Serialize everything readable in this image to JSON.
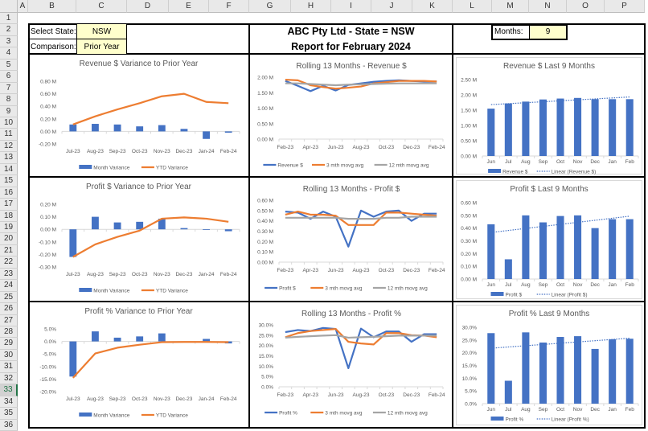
{
  "columns": [
    "A",
    "B",
    "C",
    "D",
    "E",
    "F",
    "G",
    "H",
    "I",
    "J",
    "K",
    "L",
    "M",
    "N",
    "O",
    "P"
  ],
  "rows": [
    "1",
    "2",
    "3",
    "4",
    "5",
    "6",
    "7",
    "8",
    "9",
    "10",
    "11",
    "12",
    "13",
    "14",
    "15",
    "16",
    "17",
    "18",
    "19",
    "20",
    "21",
    "22",
    "23",
    "24",
    "25",
    "26",
    "27",
    "28",
    "29",
    "30",
    "31",
    "32",
    "33",
    "34",
    "35",
    "36"
  ],
  "selected_row": "33",
  "controls": {
    "state_label": "Select State:",
    "state_value": "NSW",
    "comparison_label": "Comparison:",
    "comparison_value": "Prior Year",
    "months_label": "Months:",
    "months_value": "9"
  },
  "header": {
    "line1": "ABC Pty Ltd - State = NSW",
    "line2": "Report for February 2024"
  },
  "colors": {
    "blue": "#4472c4",
    "orange": "#ed7d31",
    "gray": "#a5a5a5"
  },
  "chart_data": [
    {
      "id": "rev-var",
      "type": "bar+line",
      "title": "Revenue $ Variance to Prior Year",
      "categories": [
        "Jul-23",
        "Aug-23",
        "Sep-23",
        "Oct-23",
        "Nov-23",
        "Dec-23",
        "Jan-24",
        "Feb-24"
      ],
      "ylim": [
        -0.2,
        0.8
      ],
      "yticks": [
        "-0.20 M",
        "0.00 M",
        "0.20 M",
        "0.40 M",
        "0.60 M",
        "0.80 M"
      ],
      "series": [
        {
          "name": "Month Variance",
          "kind": "bar",
          "color": "#4472c4",
          "values": [
            0.11,
            0.12,
            0.11,
            0.08,
            0.1,
            0.04,
            -0.12,
            -0.02
          ]
        },
        {
          "name": "YTD Variance",
          "kind": "line",
          "color": "#ed7d31",
          "values": [
            0.11,
            0.24,
            0.35,
            0.45,
            0.56,
            0.6,
            0.47,
            0.45
          ]
        }
      ]
    },
    {
      "id": "rev-roll",
      "type": "line",
      "title": "Rolling 13 Months - Revenue $",
      "categories": [
        "Feb-23",
        "Mar-23",
        "Apr-23",
        "May-23",
        "Jun-23",
        "Jul-23",
        "Aug-23",
        "Sep-23",
        "Oct-23",
        "Nov-23",
        "Dec-23",
        "Jan-24",
        "Feb-24"
      ],
      "ylim": [
        0,
        2
      ],
      "yticks": [
        "0.00 M",
        "0.50 M",
        "1.00 M",
        "1.50 M",
        "2.00 M"
      ],
      "series": [
        {
          "name": "Revenue $",
          "kind": "line",
          "color": "#4472c4",
          "values": [
            1.88,
            1.72,
            1.55,
            1.72,
            1.57,
            1.75,
            1.8,
            1.85,
            1.88,
            1.9,
            1.88,
            1.86,
            1.86
          ]
        },
        {
          "name": "3 mth movg avg",
          "kind": "line",
          "color": "#ed7d31",
          "values": [
            1.92,
            1.9,
            1.74,
            1.68,
            1.63,
            1.66,
            1.7,
            1.8,
            1.84,
            1.88,
            1.88,
            1.88,
            1.86
          ]
        },
        {
          "name": "12 mth movg avg",
          "kind": "line",
          "color": "#a5a5a5",
          "values": [
            1.8,
            1.8,
            1.78,
            1.76,
            1.74,
            1.76,
            1.77,
            1.78,
            1.79,
            1.8,
            1.8,
            1.8,
            1.8
          ]
        }
      ]
    },
    {
      "id": "rev-last9",
      "type": "bar+trend",
      "title": "Revenue $ Last 9 Months",
      "categories": [
        "Jun",
        "Jul",
        "Aug",
        "Sep",
        "Oct",
        "Nov",
        "Dec",
        "Jan",
        "Feb"
      ],
      "ylim": [
        0,
        2.5
      ],
      "yticks": [
        "0.00 M",
        "0.50 M",
        "1.00 M",
        "1.50 M",
        "2.00 M",
        "2.50 M"
      ],
      "series": [
        {
          "name": "Revenue $",
          "kind": "bar",
          "color": "#4472c4",
          "values": [
            1.55,
            1.72,
            1.78,
            1.85,
            1.88,
            1.9,
            1.86,
            1.86,
            1.86
          ]
        },
        {
          "name": "Linear (Revenue $)",
          "kind": "trend",
          "color": "#4472c4"
        }
      ]
    },
    {
      "id": "profit-var",
      "type": "bar+line",
      "title": "Profit $ Variance to Prior Year",
      "categories": [
        "Jul-23",
        "Aug-23",
        "Sep-23",
        "Oct-23",
        "Nov-23",
        "Dec-23",
        "Jan-24",
        "Feb-24"
      ],
      "ylim": [
        -0.3,
        0.2
      ],
      "yticks": [
        "-0.30 M",
        "-0.20 M",
        "-0.10 M",
        "0.00 M",
        "0.10 M",
        "0.20 M"
      ],
      "series": [
        {
          "name": "Month Variance",
          "kind": "bar",
          "color": "#4472c4",
          "values": [
            -0.22,
            0.1,
            0.055,
            0.06,
            0.085,
            0.01,
            -0.005,
            -0.015
          ]
        },
        {
          "name": "YTD Variance",
          "kind": "line",
          "color": "#ed7d31",
          "values": [
            -0.22,
            -0.12,
            -0.06,
            -0.01,
            0.085,
            0.095,
            0.085,
            0.06
          ]
        }
      ]
    },
    {
      "id": "profit-roll",
      "type": "line",
      "title": "Rolling 13 Months - Profit $",
      "categories": [
        "Feb-23",
        "Mar-23",
        "Apr-23",
        "May-23",
        "Jun-23",
        "Jul-23",
        "Aug-23",
        "Sep-23",
        "Oct-23",
        "Nov-23",
        "Dec-23",
        "Jan-24",
        "Feb-24"
      ],
      "ylim": [
        0,
        0.6
      ],
      "yticks": [
        "0.00 M",
        "0.10 M",
        "0.20 M",
        "0.30 M",
        "0.40 M",
        "0.50 M",
        "0.60 M"
      ],
      "series": [
        {
          "name": "Profit $",
          "kind": "line",
          "color": "#4472c4",
          "values": [
            0.49,
            0.48,
            0.42,
            0.49,
            0.44,
            0.15,
            0.5,
            0.44,
            0.49,
            0.5,
            0.4,
            0.47,
            0.47
          ]
        },
        {
          "name": "3 mth movg avg",
          "kind": "line",
          "color": "#ed7d31",
          "values": [
            0.46,
            0.49,
            0.46,
            0.46,
            0.45,
            0.36,
            0.36,
            0.36,
            0.48,
            0.48,
            0.47,
            0.46,
            0.45
          ]
        },
        {
          "name": "12 mth movg avg",
          "kind": "line",
          "color": "#a5a5a5",
          "values": [
            0.43,
            0.43,
            0.43,
            0.43,
            0.43,
            0.42,
            0.42,
            0.42,
            0.43,
            0.43,
            0.44,
            0.44,
            0.44
          ]
        }
      ]
    },
    {
      "id": "profit-last9",
      "type": "bar+trend",
      "title": "Profit $ Last 9 Months",
      "categories": [
        "Jun",
        "Jul",
        "Aug",
        "Sep",
        "Oct",
        "Nov",
        "Dec",
        "Jan",
        "Feb"
      ],
      "ylim": [
        0,
        0.6
      ],
      "yticks": [
        "0.00 M",
        "0.10 M",
        "0.20 M",
        "0.30 M",
        "0.40 M",
        "0.50 M",
        "0.60 M"
      ],
      "series": [
        {
          "name": "Profit $",
          "kind": "bar",
          "color": "#4472c4",
          "values": [
            0.43,
            0.155,
            0.5,
            0.445,
            0.495,
            0.5,
            0.4,
            0.47,
            0.47
          ]
        },
        {
          "name": "Linear (Profit $)",
          "kind": "trend",
          "color": "#4472c4"
        }
      ]
    },
    {
      "id": "pct-var",
      "type": "bar+line",
      "title": "Profit % Variance to Prior Year",
      "categories": [
        "Jul-23",
        "Aug-23",
        "Sep-23",
        "Oct-23",
        "Nov-23",
        "Dec-23",
        "Jan-24",
        "Feb-24"
      ],
      "ylim": [
        -20,
        5
      ],
      "yticks": [
        "-20.0%",
        "-15.0%",
        "-10.0%",
        "-5.0%",
        "0.0%",
        "5.0%"
      ],
      "series": [
        {
          "name": "Month Variance",
          "kind": "bar",
          "color": "#4472c4",
          "values": [
            -14.0,
            4.0,
            1.5,
            2.0,
            3.2,
            0,
            1.0,
            -0.8
          ]
        },
        {
          "name": "YTD Variance",
          "kind": "line",
          "color": "#ed7d31",
          "values": [
            -14.5,
            -4.8,
            -2.5,
            -1.3,
            -0.3,
            -0.2,
            -0.2,
            -0.3
          ]
        }
      ]
    },
    {
      "id": "pct-roll",
      "type": "line",
      "title": "Rolling 13 Months - Profit %",
      "categories": [
        "Feb-23",
        "Mar-23",
        "Apr-23",
        "May-23",
        "Jun-23",
        "Jul-23",
        "Aug-23",
        "Sep-23",
        "Oct-23",
        "Nov-23",
        "Dec-23",
        "Jan-24",
        "Feb-24"
      ],
      "ylim": [
        0,
        30
      ],
      "yticks": [
        "0.0%",
        "5.0%",
        "10.0%",
        "15.0%",
        "20.0%",
        "25.0%",
        "30.0%"
      ],
      "series": [
        {
          "name": "Profit %",
          "kind": "line",
          "color": "#4472c4",
          "values": [
            26.5,
            27.5,
            27.0,
            28.5,
            28.0,
            9.0,
            28.2,
            24.0,
            26.8,
            26.8,
            21.8,
            25.5,
            25.5
          ]
        },
        {
          "name": "3 mth movg avg",
          "kind": "line",
          "color": "#ed7d31",
          "values": [
            24.0,
            26.0,
            27.0,
            27.5,
            28.0,
            21.8,
            21.0,
            20.5,
            26.0,
            26.0,
            25.0,
            24.8,
            24.0
          ]
        },
        {
          "name": "12 mth movg avg",
          "kind": "line",
          "color": "#a5a5a5",
          "values": [
            23.8,
            24.2,
            24.5,
            24.8,
            25.0,
            23.8,
            24.0,
            24.2,
            24.5,
            24.8,
            24.8,
            24.8,
            24.8
          ]
        }
      ]
    },
    {
      "id": "pct-last9",
      "type": "bar+trend",
      "title": "Profit % Last 9 Months",
      "categories": [
        "Jun",
        "Jul",
        "Aug",
        "Sep",
        "Oct",
        "Nov",
        "Dec",
        "Jan",
        "Feb"
      ],
      "ylim": [
        0,
        30
      ],
      "yticks": [
        "0.0%",
        "5.0%",
        "10.0%",
        "15.0%",
        "20.0%",
        "25.0%",
        "30.0%"
      ],
      "series": [
        {
          "name": "Profit %",
          "kind": "bar",
          "color": "#4472c4",
          "values": [
            27.7,
            9.0,
            28.0,
            24.0,
            26.2,
            26.5,
            21.5,
            25.3,
            25.5
          ]
        },
        {
          "name": "Linear (Profit %)",
          "kind": "trend",
          "color": "#4472c4"
        }
      ]
    }
  ]
}
